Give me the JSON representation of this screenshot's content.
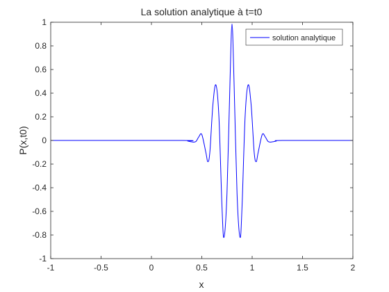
{
  "chart_data": {
    "type": "line",
    "title": "La solution analytique à t=t0",
    "xlabel": "x",
    "ylabel": "P(x,t0)",
    "xlim": [
      -1,
      2
    ],
    "ylim": [
      -1,
      1
    ],
    "xticks": [
      -1,
      -0.5,
      0,
      0.5,
      1,
      1.5,
      2
    ],
    "yticks": [
      -1,
      -0.8,
      -0.6,
      -0.4,
      -0.2,
      0,
      0.2,
      0.4,
      0.6,
      0.8,
      1
    ],
    "xtick_labels": [
      "-1",
      "-0.5",
      "0",
      "0.5",
      "1",
      "1.5",
      "2"
    ],
    "ytick_labels": [
      "-1",
      "-0.8",
      "-0.6",
      "-0.4",
      "-0.2",
      "0",
      "0.2",
      "0.4",
      "0.6",
      "0.8",
      "1"
    ],
    "grid": false,
    "legend_position": "top-right",
    "series": [
      {
        "name": "solution analytique",
        "color": "#0000ff",
        "x": [
          -1.0,
          0.3,
          0.36,
          0.4,
          0.44,
          0.47,
          0.5,
          0.54,
          0.56,
          0.58,
          0.61,
          0.64,
          0.67,
          0.7,
          0.72,
          0.75,
          0.78,
          0.8,
          0.82,
          0.85,
          0.88,
          0.9,
          0.93,
          0.96,
          0.99,
          1.02,
          1.04,
          1.06,
          1.1,
          1.13,
          1.16,
          1.2,
          1.24,
          1.3,
          2.0
        ],
        "y": [
          0,
          0,
          -0.005,
          -0.012,
          -0.01,
          0.03,
          0.05,
          -0.1,
          -0.18,
          -0.1,
          0.3,
          0.47,
          0.2,
          -0.55,
          -0.82,
          -0.45,
          0.5,
          0.985,
          0.5,
          -0.45,
          -0.82,
          -0.55,
          0.2,
          0.47,
          0.3,
          -0.1,
          -0.18,
          -0.1,
          0.05,
          0.03,
          -0.01,
          -0.012,
          -0.005,
          0,
          0
        ]
      }
    ]
  }
}
